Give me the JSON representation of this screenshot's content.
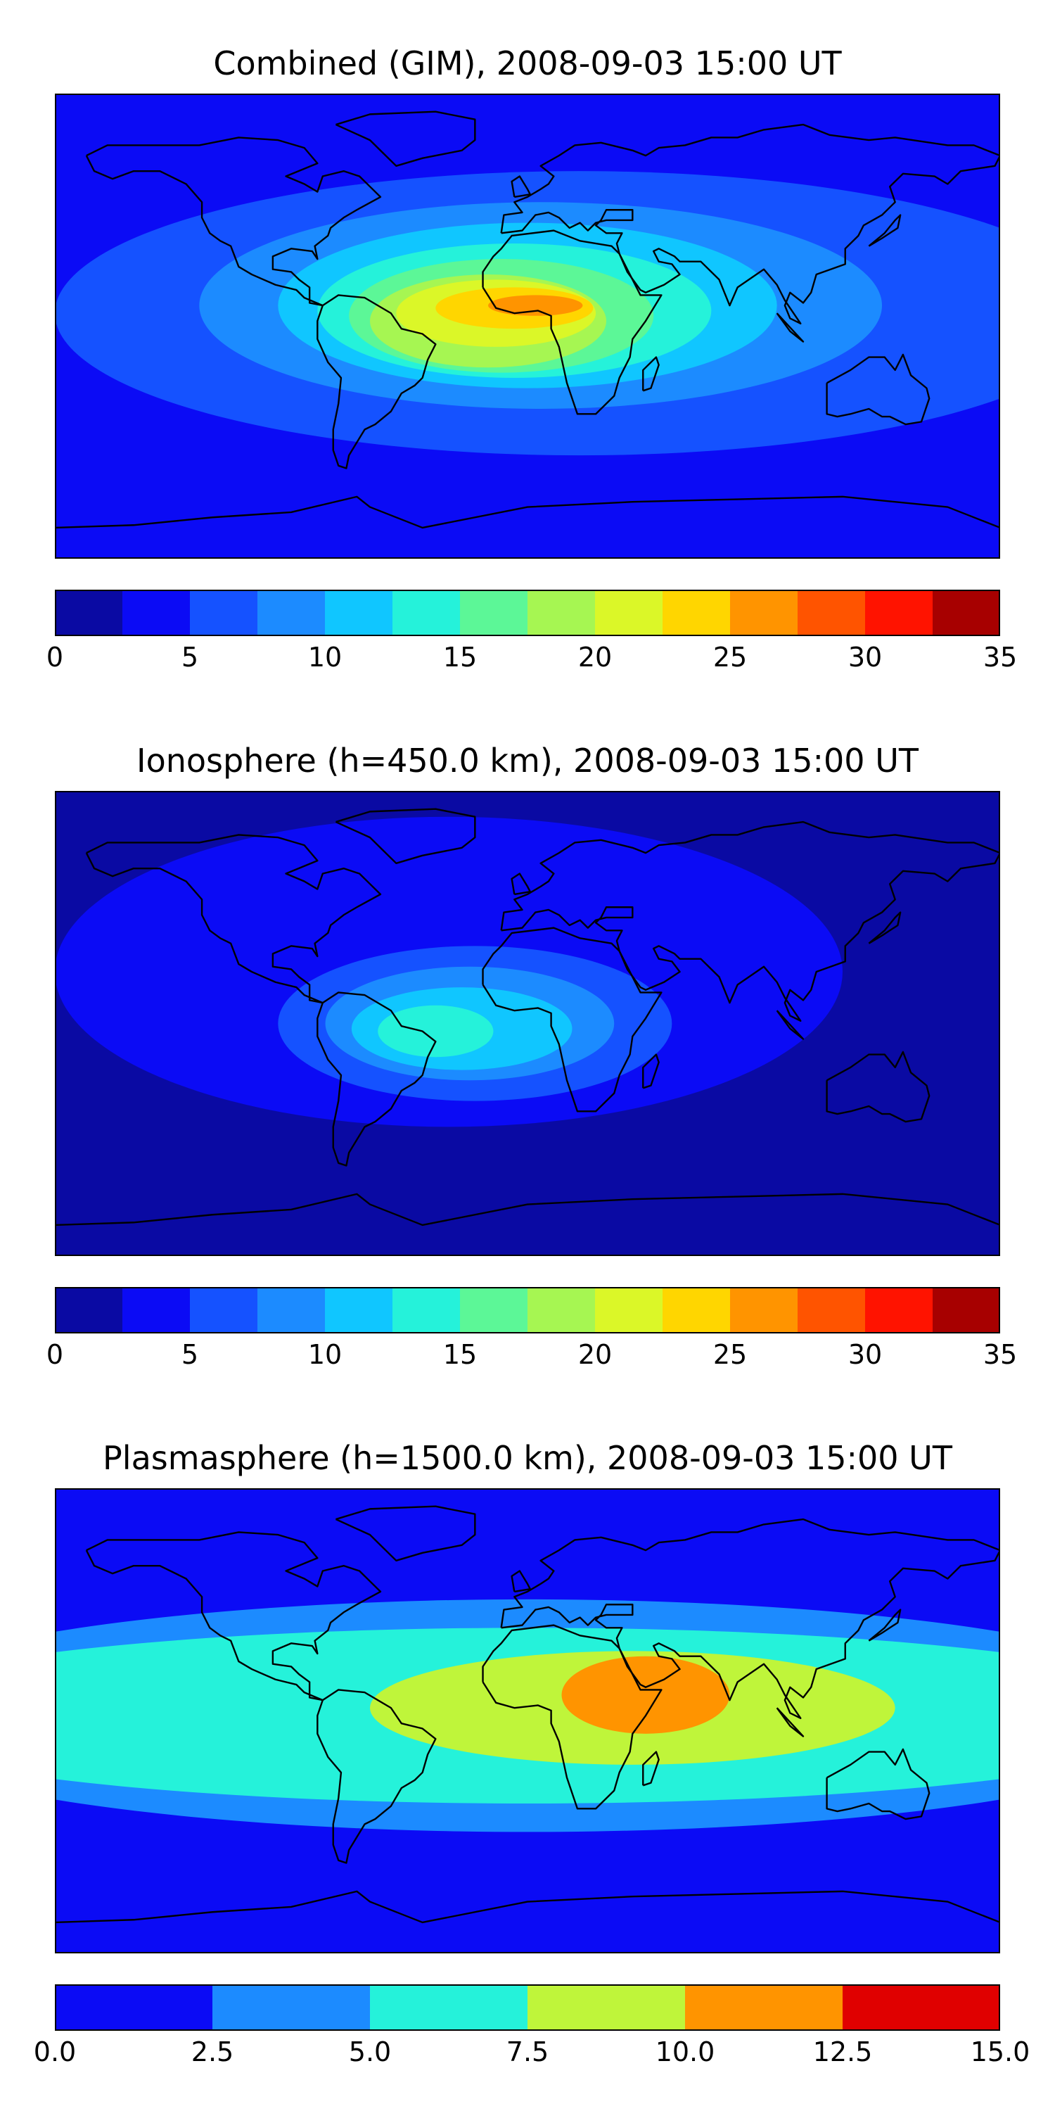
{
  "panels": [
    {
      "title": "Combined (GIM), 2008-09-03 15:00 UT",
      "colorbar": {
        "min": 0,
        "max": 35,
        "levels": 14,
        "colors": [
          "#0a0aa3",
          "#0b0bf5",
          "#1552ff",
          "#1c8bff",
          "#10c6ff",
          "#25f2da",
          "#5cf797",
          "#a6f652",
          "#dbf728",
          "#ffd600",
          "#ff9400",
          "#ff5400",
          "#ff1300",
          "#a70000"
        ],
        "ticks": [
          "0",
          "5",
          "10",
          "15",
          "20",
          "25",
          "30",
          "35"
        ]
      },
      "map": {
        "background": "#0b0bf5",
        "blobs": [
          {
            "color": "#1552ff",
            "lon": 20,
            "lat": 5,
            "rlon": 200,
            "rlat": 55
          },
          {
            "color": "#1c8bff",
            "lon": 5,
            "lat": 8,
            "rlon": 130,
            "rlat": 40
          },
          {
            "color": "#10c6ff",
            "lon": 0,
            "lat": 8,
            "rlon": 95,
            "rlat": 32
          },
          {
            "color": "#25f2da",
            "lon": -5,
            "lat": 6,
            "rlon": 75,
            "rlat": 26
          },
          {
            "color": "#5cf797",
            "lon": -10,
            "lat": 4,
            "rlon": 58,
            "rlat": 22
          },
          {
            "color": "#a6f652",
            "lon": -15,
            "lat": 2,
            "rlon": 45,
            "rlat": 18
          },
          {
            "color": "#dbf728",
            "lon": -12,
            "lat": 5,
            "rlon": 38,
            "rlat": 13
          },
          {
            "color": "#ffd600",
            "lon": -5,
            "lat": 7,
            "rlon": 30,
            "rlat": 8
          },
          {
            "color": "#ff9400",
            "lon": 3,
            "lat": 8,
            "rlon": 18,
            "rlat": 4
          }
        ]
      }
    },
    {
      "title": "Ionosphere  (h=450.0 km), 2008-09-03 15:00 UT",
      "colorbar": {
        "min": 0,
        "max": 35,
        "levels": 14,
        "colors": [
          "#0a0aa3",
          "#0b0bf5",
          "#1552ff",
          "#1c8bff",
          "#10c6ff",
          "#25f2da",
          "#5cf797",
          "#a6f652",
          "#dbf728",
          "#ffd600",
          "#ff9400",
          "#ff5400",
          "#ff1300",
          "#a70000"
        ],
        "ticks": [
          "0",
          "5",
          "10",
          "15",
          "20",
          "25",
          "30",
          "35"
        ]
      },
      "map": {
        "background": "#0a0aa3",
        "blobs": [
          {
            "color": "#0b0bf5",
            "lon": -30,
            "lat": 20,
            "rlon": 150,
            "rlat": 60
          },
          {
            "color": "#1552ff",
            "lon": -20,
            "lat": 0,
            "rlon": 75,
            "rlat": 30
          },
          {
            "color": "#1c8bff",
            "lon": -22,
            "lat": 0,
            "rlon": 55,
            "rlat": 22
          },
          {
            "color": "#10c6ff",
            "lon": -25,
            "lat": -2,
            "rlon": 42,
            "rlat": 16
          },
          {
            "color": "#25f2da",
            "lon": -35,
            "lat": -3,
            "rlon": 22,
            "rlat": 10
          }
        ]
      }
    },
    {
      "title": "Plasmasphere (h=1500.0 km), 2008-09-03 15:00 UT",
      "colorbar": {
        "min": 0,
        "max": 15,
        "levels": 6,
        "colors": [
          "#0b0bf5",
          "#1c8bff",
          "#25f2da",
          "#bff53a",
          "#ff9400",
          "#e00000"
        ],
        "ticks": [
          "0.0",
          "2.5",
          "5.0",
          "7.5",
          "10.0",
          "12.5",
          "15.0"
        ]
      },
      "map": {
        "background": "#0b0bf5",
        "blobs": [
          {
            "color": "#1c8bff",
            "lon": 0,
            "lat": 2,
            "rlon": 260,
            "rlat": 45
          },
          {
            "color": "#25f2da",
            "lon": 0,
            "lat": 2,
            "rlon": 260,
            "rlat": 34
          },
          {
            "color": "#bff53a",
            "lon": 40,
            "lat": 5,
            "rlon": 100,
            "rlat": 22
          },
          {
            "color": "#ff9400",
            "lon": 45,
            "lat": 10,
            "rlon": 32,
            "rlat": 15
          }
        ]
      }
    }
  ]
}
